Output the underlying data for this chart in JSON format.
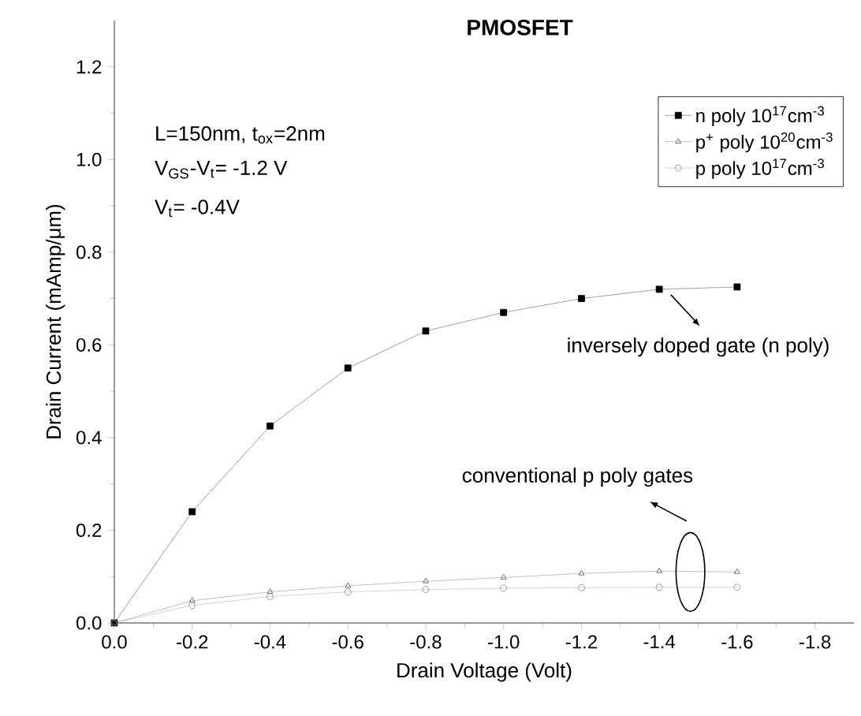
{
  "chart_data": {
    "type": "line",
    "title": "PMOSFET",
    "xlabel": "Drain Voltage (Volt)",
    "ylabel": "Drain Current (mAmp/μm)",
    "x": [
      0,
      -0.2,
      -0.4,
      -0.6,
      -0.8,
      -1.0,
      -1.2,
      -1.4,
      -1.6
    ],
    "series": [
      {
        "name": "n poly 10$^{17}$cm$^{-3}$",
        "color": "#000000",
        "marker": "square",
        "values": [
          0,
          0.24,
          0.425,
          0.55,
          0.63,
          0.67,
          0.7,
          0.72,
          0.725
        ]
      },
      {
        "name": "p$^{+}$ poly 10$^{20}$cm$^{-3}$",
        "color": "#555555",
        "marker": "triangle",
        "values": [
          0,
          0.048,
          0.067,
          0.08,
          0.09,
          0.098,
          0.107,
          0.112,
          0.11
        ]
      },
      {
        "name": "p poly 10$^{17}$cm$^{-3}$",
        "color": "#888888",
        "marker": "circle",
        "values": [
          0,
          0.038,
          0.057,
          0.067,
          0.072,
          0.075,
          0.076,
          0.077,
          0.077
        ]
      }
    ],
    "xlim": [
      0,
      -1.9
    ],
    "ylim": [
      0,
      1.3
    ],
    "xticks": [
      {
        "value": 0,
        "label": "0.0"
      },
      -0.2,
      -0.4,
      -0.6,
      -0.8,
      {
        "value": -1.0,
        "label": "-1.0"
      },
      -1.2,
      -1.4,
      -1.6,
      -1.8
    ],
    "yticks": [
      {
        "value": 0,
        "label": "0.0"
      },
      0.2,
      0.4,
      0.6,
      0.8,
      {
        "value": 1.0,
        "label": "1.0"
      },
      1.2
    ],
    "legend": "top right",
    "grid": false,
    "annotations": [
      "L=150nm, t$_{ox}$=2nm",
      "V$_{GS}$-V$_{t}$= -1.2 V",
      "V$_{t}$= -0.4V",
      {
        "text": "inversely doped gate (n poly)",
        "x": -1.4,
        "y": 0.72
      },
      "conventional p poly gates"
    ]
  }
}
